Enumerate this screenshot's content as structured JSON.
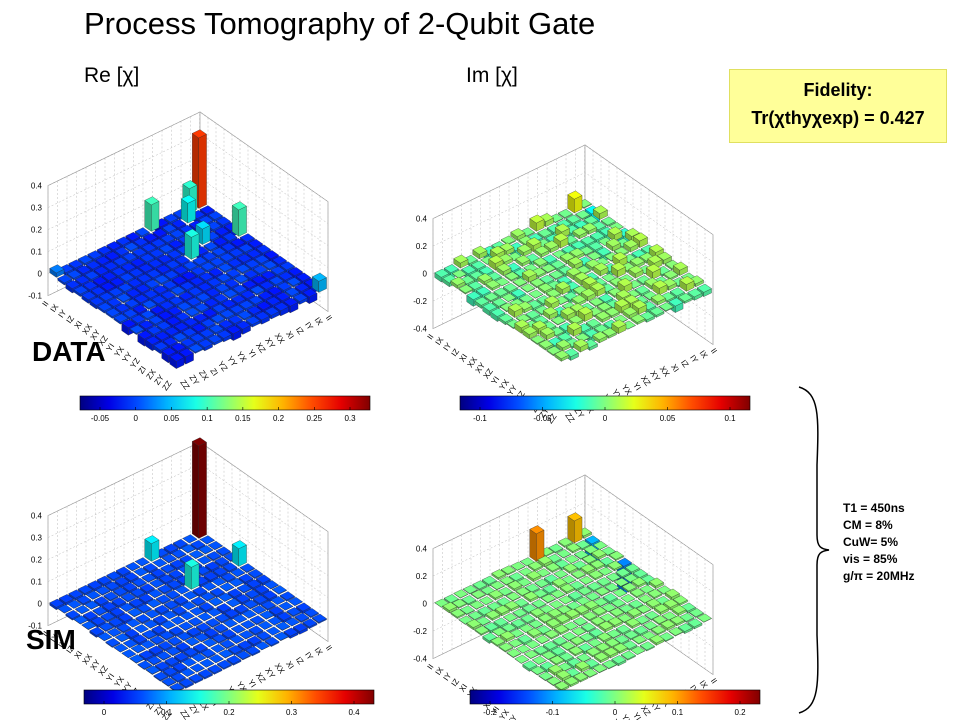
{
  "title": "Process Tomography of 2-Qubit Gate",
  "re_label": "Re [χ]",
  "im_label": "Im [χ]",
  "fidelity": {
    "line1": "Fidelity:",
    "line2": "Tr(χthyχexp) = 0.427"
  },
  "row_labels": {
    "data": "DATA",
    "sim": "SIM"
  },
  "sim_params": [
    "T1  = 450ns",
    "CM = 8%",
    "CuW= 5%",
    "vis = 85%",
    "g/π = 20MHz"
  ],
  "basis": [
    "II",
    "IX",
    "IY",
    "IZ",
    "XI",
    "XX",
    "XY",
    "XZ",
    "YI",
    "YX",
    "YY",
    "YZ",
    "ZI",
    "ZX",
    "ZY",
    "ZZ"
  ],
  "colors": {
    "fidelity_bg": "#ffff99",
    "high": "#8b0000",
    "low": "#00008f"
  },
  "chart_data": [
    {
      "type": "bar3d",
      "name": "data-re",
      "title": "Re [χ]",
      "zticks": [
        "0.4",
        "0.3",
        "0.2",
        "0.1",
        "0",
        "-0.1"
      ],
      "zlim": [
        -0.1,
        0.4
      ],
      "peaks": [
        {
          "row": "II",
          "col": "II",
          "value": 0.32
        },
        {
          "row": "XX",
          "col": "XX",
          "value": 0.1
        },
        {
          "row": "II",
          "col": "XX",
          "value": 0.12
        },
        {
          "row": "XX",
          "col": "II",
          "value": 0.12
        },
        {
          "row": "IX",
          "col": "II",
          "value": 0.11
        },
        {
          "row": "II",
          "col": "ZZ",
          "value": 0.05
        },
        {
          "row": "ZZ",
          "col": "II",
          "value": 0.02
        },
        {
          "row": "IY",
          "col": "IX",
          "value": 0.09
        },
        {
          "row": "IZ",
          "col": "XI",
          "value": 0.07
        }
      ]
    },
    {
      "type": "bar3d",
      "name": "data-im",
      "title": "Im [χ]",
      "zticks": [
        "0.4",
        "0.2",
        "0",
        "-0.2",
        "-0.4"
      ],
      "zlim": [
        -0.4,
        0.4
      ],
      "peaks": [
        {
          "row": "IX",
          "col": "II",
          "value": 0.1
        },
        {
          "row": "II",
          "col": "IX",
          "value": -0.1
        },
        {
          "row": "XX",
          "col": "II",
          "value": 0.06
        },
        {
          "row": "II",
          "col": "XX",
          "value": -0.06
        }
      ]
    },
    {
      "type": "bar3d",
      "name": "sim-re",
      "zticks": [
        "0.4",
        "0.3",
        "0.2",
        "0.1",
        "0",
        "-0.1"
      ],
      "zlim": [
        -0.1,
        0.4
      ],
      "peaks": [
        {
          "row": "II",
          "col": "II",
          "value": 0.42
        },
        {
          "row": "XX",
          "col": "XX",
          "value": 0.1
        },
        {
          "row": "II",
          "col": "XX",
          "value": 0.08
        },
        {
          "row": "XX",
          "col": "II",
          "value": 0.08
        }
      ]
    },
    {
      "type": "bar3d",
      "name": "sim-im",
      "zticks": [
        "0.4",
        "0.2",
        "0",
        "-0.2",
        "-0.4"
      ],
      "zlim": [
        -0.4,
        0.4
      ],
      "peaks": [
        {
          "row": "XX",
          "col": "II",
          "value": 0.2
        },
        {
          "row": "II",
          "col": "XX",
          "value": -0.2
        },
        {
          "row": "IX",
          "col": "II",
          "value": 0.16
        },
        {
          "row": "II",
          "col": "IX",
          "value": -0.16
        }
      ]
    }
  ],
  "colorbars": [
    {
      "name": "cbar-data-re",
      "ticks": [
        "-0.05",
        "0",
        "0.05",
        "0.1",
        "0.15",
        "0.2",
        "0.25",
        "0.3"
      ]
    },
    {
      "name": "cbar-data-im",
      "ticks": [
        "-0.1",
        "-0.05",
        "0",
        "0.05",
        "0.1"
      ]
    },
    {
      "name": "cbar-sim-re",
      "ticks": [
        "0",
        "0.1",
        "0.2",
        "0.3",
        "0.4"
      ]
    },
    {
      "name": "cbar-sim-im",
      "ticks": [
        "-0.2",
        "-0.1",
        "0",
        "0.1",
        "0.2"
      ]
    }
  ]
}
